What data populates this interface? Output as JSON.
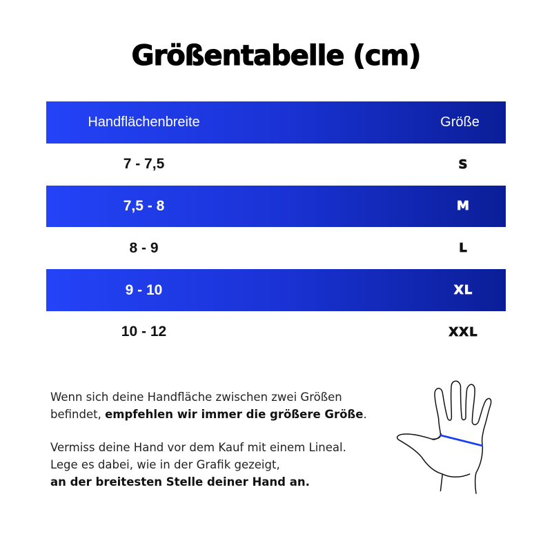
{
  "title": "Größentabelle (cm)",
  "table": {
    "headers": [
      "Handflächenbreite",
      "Größe"
    ],
    "rows": [
      {
        "width": "7 - 7,5",
        "size": "S"
      },
      {
        "width": "7,5 - 8",
        "size": "M"
      },
      {
        "width": "8 - 9",
        "size": "L"
      },
      {
        "width": "9 - 10",
        "size": "XL"
      },
      {
        "width": "10 - 12",
        "size": "XXL"
      }
    ]
  },
  "info": {
    "p1_line1": "Wenn sich deine Handfläche zwischen zwei Größen",
    "p1_line2_normal": "befindet, ",
    "p1_line2_bold": "empfehlen wir immer die größere Größe",
    "p1_line2_end": ".",
    "p2_line1": "Vermiss deine Hand vor dem Kauf mit einem Lineal.",
    "p2_line2": "Lege es dabei, wie in der Grafik gezeigt,",
    "p2_line3_bold": "an der breitesten Stelle deiner Hand an."
  },
  "colors": {
    "accent_start": "#2443f7",
    "accent_end": "#0b1e98",
    "measure_line": "#1a3ff0"
  },
  "icons": {
    "hand": "hand-measure-icon"
  }
}
